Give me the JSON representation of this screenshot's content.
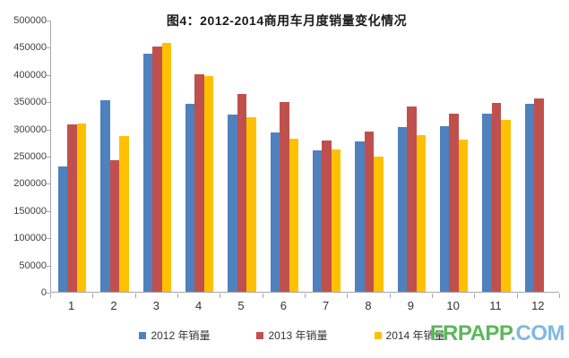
{
  "title": "图4：2012-2014商用车月度销量变化情况",
  "colors": {
    "series_2012": "#4e81bd",
    "series_2013": "#c0504d",
    "series_2014": "#ffc000",
    "axis": "#a6a6a6",
    "label_text": "#3f3f3f"
  },
  "legend": {
    "items": [
      {
        "label": "2012 年销量",
        "color": "#4e81bd"
      },
      {
        "label": "2013 年销量",
        "color": "#c0504d"
      },
      {
        "label": "2014 年销量",
        "color": "#ffc000"
      }
    ]
  },
  "watermark": {
    "part1": "FRPAPP",
    "part1_color": "#5cb75b",
    "part2": ".COM",
    "part2_color": "#7eb9e2"
  },
  "chart_data": {
    "type": "bar",
    "title": "图4：2012-2014商用车月度销量变化情况",
    "categories": [
      "1",
      "2",
      "3",
      "4",
      "5",
      "6",
      "7",
      "8",
      "9",
      "10",
      "11",
      "12"
    ],
    "series": [
      {
        "name": "2012 年销量",
        "color": "#4e81bd",
        "values": [
          230000,
          352000,
          437000,
          346000,
          325000,
          293000,
          260000,
          276000,
          302000,
          305000,
          328000,
          346000
        ]
      },
      {
        "name": "2013 年销量",
        "color": "#c0504d",
        "values": [
          308000,
          242000,
          450000,
          400000,
          363000,
          348000,
          278000,
          295000,
          341000,
          327000,
          347000,
          356000
        ]
      },
      {
        "name": "2014 年销量",
        "color": "#ffc000",
        "values": [
          310000,
          286000,
          458000,
          396000,
          320000,
          282000,
          262000,
          248000,
          288000,
          280000,
          315000,
          null
        ]
      }
    ],
    "xlabel": "",
    "ylabel": "",
    "ylim": [
      0,
      500000
    ],
    "ytick_step": 50000,
    "grid": false,
    "legend_position": "bottom"
  }
}
